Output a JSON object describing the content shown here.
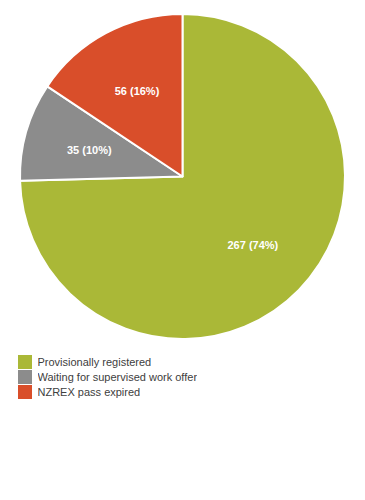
{
  "chart_data": {
    "type": "pie",
    "categories": [
      "Provisionally registered",
      "Waiting for supervised work offer",
      "NZREX pass expired"
    ],
    "values": [
      267,
      35,
      56
    ],
    "value_labels": [
      "267 (74%)",
      "35 (10%)",
      "56 (16%)"
    ],
    "colors": [
      "#aab837",
      "#8c8c8c",
      "#d94e2a"
    ],
    "data_labels": true,
    "legend": "bottom"
  }
}
